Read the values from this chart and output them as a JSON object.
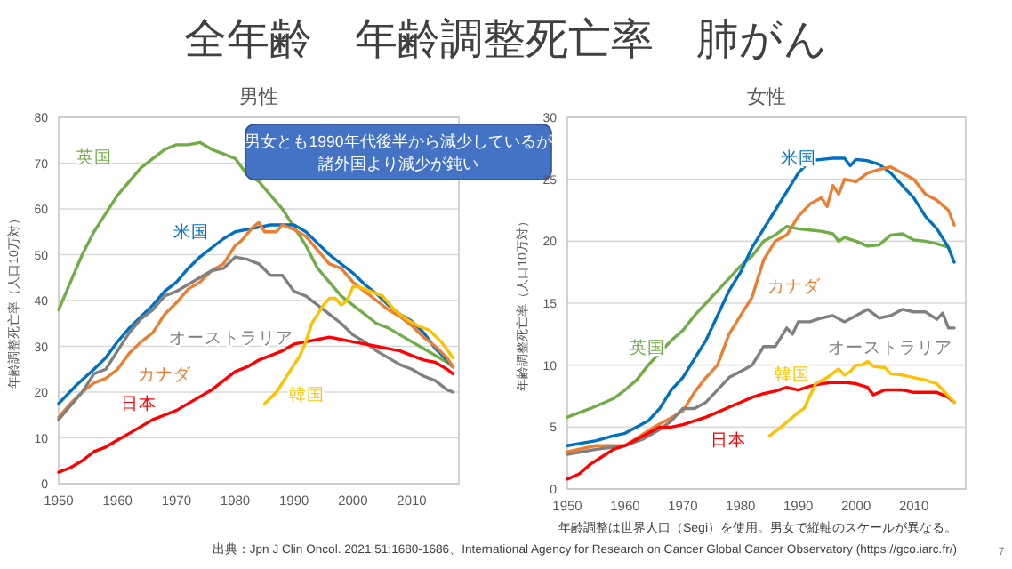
{
  "chart_data": [
    {
      "type": "line",
      "title": "全年齢　年齢調整死亡率　肺がん",
      "subtitle": "男性",
      "ylabel": "年齢調整死亡率（人口10万対）",
      "xlim": [
        1950,
        2018
      ],
      "xticks": [
        1950,
        1960,
        1970,
        1980,
        1990,
        2000,
        2010
      ],
      "ylim": [
        0,
        80
      ],
      "yticks": [
        0,
        10,
        20,
        30,
        40,
        50,
        60,
        70,
        80
      ],
      "grid": "y",
      "annotations": [
        "男女とも1990年代後半から減少しているが",
        "諸外国より減少が鈍い"
      ],
      "series": [
        {
          "name": "英国",
          "color": "#70ad47",
          "x": [
            1950,
            1952,
            1954,
            1956,
            1958,
            1960,
            1962,
            1964,
            1966,
            1968,
            1970,
            1972,
            1974,
            1976,
            1978,
            1980,
            1982,
            1984,
            1986,
            1988,
            1990,
            1992,
            1994,
            1996,
            1998,
            2000,
            2002,
            2004,
            2006,
            2008,
            2010,
            2012,
            2014,
            2016,
            2017
          ],
          "values": [
            38,
            44,
            50,
            55,
            59,
            63,
            66,
            69,
            71,
            73,
            74,
            74,
            74.5,
            73,
            72,
            71,
            67.5,
            66,
            63,
            60,
            56,
            52,
            47,
            44,
            41,
            39,
            37,
            35,
            34,
            32.5,
            31,
            29.5,
            28,
            26.5,
            25.5
          ]
        },
        {
          "name": "米国",
          "color": "#0070c0",
          "x": [
            1950,
            1953,
            1956,
            1958,
            1960,
            1962,
            1964,
            1966,
            1968,
            1970,
            1972,
            1974,
            1976,
            1978,
            1980,
            1982,
            1984,
            1986,
            1988,
            1990,
            1992,
            1994,
            1996,
            1998,
            2000,
            2002,
            2004,
            2006,
            2008,
            2010,
            2012,
            2014,
            2016,
            2017
          ],
          "values": [
            17.5,
            21.5,
            25,
            27.5,
            31,
            34,
            36.5,
            39,
            42,
            44,
            47,
            49.5,
            51.5,
            53.5,
            55,
            55.5,
            56,
            56.5,
            56.5,
            56.5,
            55,
            52.5,
            50,
            48,
            46,
            43.5,
            41.5,
            39,
            37,
            35.5,
            33,
            29.5,
            27,
            25.5
          ]
        },
        {
          "name": "カナダ",
          "color": "#ed7d31",
          "x": [
            1950,
            1952,
            1954,
            1956,
            1958,
            1960,
            1962,
            1964,
            1966,
            1968,
            1970,
            1972,
            1974,
            1976,
            1978,
            1980,
            1981,
            1983,
            1984,
            1985,
            1987,
            1988,
            1990,
            1992,
            1994,
            1996,
            1998,
            2000,
            2002,
            2004,
            2006,
            2008,
            2010,
            2012,
            2014,
            2016,
            2017
          ],
          "values": [
            14.5,
            17.5,
            20,
            22,
            23,
            25,
            28.5,
            31,
            33,
            37,
            39.5,
            42.5,
            44,
            46.5,
            48,
            52,
            53,
            56,
            57,
            55,
            55,
            56.5,
            55.5,
            54,
            51,
            48,
            47,
            44,
            42,
            40,
            38,
            36.5,
            34.5,
            32,
            30,
            27.5,
            25.5
          ]
        },
        {
          "name": "オーストラリア",
          "color": "#808080",
          "x": [
            1950,
            1952,
            1954,
            1956,
            1958,
            1960,
            1962,
            1964,
            1966,
            1968,
            1970,
            1972,
            1974,
            1976,
            1978,
            1980,
            1982,
            1984,
            1986,
            1988,
            1990,
            1992,
            1994,
            1996,
            1998,
            2000,
            2002,
            2004,
            2006,
            2008,
            2010,
            2012,
            2014,
            2016,
            2017
          ],
          "values": [
            14,
            17,
            20,
            24,
            25,
            29,
            33,
            36,
            38,
            41,
            42,
            43.5,
            45,
            46.5,
            47,
            49.5,
            49,
            48,
            45.5,
            45.5,
            42,
            41,
            39,
            37,
            35,
            32.5,
            31,
            29,
            27.5,
            26,
            25,
            23.5,
            22.5,
            20.5,
            20
          ]
        },
        {
          "name": "日本",
          "color": "#ff0000",
          "x": [
            1950,
            1952,
            1954,
            1956,
            1958,
            1960,
            1962,
            1964,
            1966,
            1968,
            1970,
            1972,
            1974,
            1976,
            1978,
            1980,
            1982,
            1984,
            1986,
            1988,
            1990,
            1992,
            1994,
            1996,
            1998,
            2000,
            2002,
            2004,
            2006,
            2008,
            2010,
            2012,
            2014,
            2016,
            2017
          ],
          "values": [
            2.5,
            3.5,
            5,
            7,
            8,
            9.5,
            11,
            12.5,
            14,
            15,
            16,
            17.5,
            19,
            20.5,
            22.5,
            24.5,
            25.5,
            27,
            28,
            29,
            30.5,
            31,
            31.5,
            32,
            31.5,
            31,
            30.5,
            30,
            29.5,
            29,
            28,
            27,
            26.5,
            25,
            24
          ]
        },
        {
          "name": "韓国",
          "color": "#ffc000",
          "x": [
            1985,
            1987,
            1989,
            1991,
            1992,
            1993,
            1995,
            1996,
            1997,
            1998,
            1999,
            2000,
            2001,
            2003,
            2005,
            2007,
            2009,
            2011,
            2013,
            2015,
            2017
          ],
          "values": [
            17.5,
            20,
            24,
            28,
            31,
            35,
            39,
            40.5,
            40.5,
            39,
            40,
            43,
            43,
            42,
            41,
            38,
            36,
            34.5,
            33.5,
            31,
            27.5
          ]
        }
      ]
    },
    {
      "type": "line",
      "subtitle": "女性",
      "ylabel": "年齢調整死亡率（人口10万対）",
      "xlim": [
        1950,
        2019
      ],
      "xticks": [
        1950,
        1960,
        1970,
        1980,
        1990,
        2000,
        2010
      ],
      "ylim": [
        0,
        30
      ],
      "yticks": [
        0,
        5,
        10,
        15,
        20,
        25,
        30
      ],
      "grid": "y",
      "annotations": [
        "年齢調整は世界人口（Segi）を使用。男女で縦軸のスケールが異なる。",
        "出典：Jpn J Clin Oncol. 2021;51:1680-1686、International Agency for Research on Cancer Global Cancer Observatory (https://gco.iarc.fr/)",
        "7"
      ],
      "series": [
        {
          "name": "英国",
          "color": "#70ad47",
          "x": [
            1950,
            1954,
            1958,
            1960,
            1962,
            1964,
            1966,
            1968,
            1970,
            1972,
            1974,
            1976,
            1978,
            1980,
            1982,
            1984,
            1986,
            1988,
            1990,
            1992,
            1994,
            1996,
            1997,
            1998,
            2000,
            2002,
            2004,
            2006,
            2008,
            2010,
            2012,
            2014,
            2016
          ],
          "values": [
            5.8,
            6.5,
            7.3,
            8,
            8.8,
            10,
            11,
            12,
            12.8,
            14,
            15,
            16,
            17,
            18,
            18.8,
            20,
            20.5,
            21.2,
            21,
            20.9,
            20.8,
            20.6,
            20,
            20.3,
            20,
            19.6,
            19.7,
            20.5,
            20.6,
            20.1,
            20,
            19.8,
            19.5
          ]
        },
        {
          "name": "米国",
          "color": "#0070c0",
          "x": [
            1950,
            1955,
            1958,
            1960,
            1962,
            1964,
            1966,
            1968,
            1970,
            1972,
            1974,
            1976,
            1978,
            1980,
            1982,
            1984,
            1986,
            1988,
            1990,
            1992,
            1994,
            1996,
            1998,
            1999,
            2000,
            2002,
            2004,
            2006,
            2008,
            2010,
            2012,
            2014,
            2016,
            2017
          ],
          "values": [
            3.5,
            3.9,
            4.3,
            4.5,
            5,
            5.5,
            6.5,
            8,
            9,
            10.5,
            12,
            14,
            16,
            17.5,
            19.5,
            21,
            22.5,
            24,
            25.5,
            26.5,
            26.6,
            26.7,
            26.7,
            26.1,
            26.6,
            26.5,
            26.2,
            25.5,
            24.5,
            23.5,
            22,
            21,
            19.5,
            18.3
          ]
        },
        {
          "name": "カナダ",
          "color": "#ed7d31",
          "x": [
            1950,
            1955,
            1960,
            1965,
            1967,
            1970,
            1972,
            1974,
            1976,
            1978,
            1980,
            1982,
            1984,
            1986,
            1988,
            1990,
            1992,
            1994,
            1995,
            1996,
            1997,
            1998,
            2000,
            2002,
            2004,
            2006,
            2008,
            2010,
            2012,
            2014,
            2016,
            2017
          ],
          "values": [
            3,
            3.5,
            3.5,
            5,
            5.5,
            6.3,
            7.8,
            9,
            10,
            12.5,
            14,
            15.5,
            18.5,
            20,
            20.5,
            22,
            23,
            23.5,
            22.8,
            24.5,
            23.8,
            25,
            24.8,
            25.5,
            25.8,
            26,
            25.5,
            25,
            23.8,
            23.3,
            22.5,
            21.3
          ]
        },
        {
          "name": "オーストラリア",
          "color": "#808080",
          "x": [
            1950,
            1955,
            1960,
            1963,
            1966,
            1968,
            1970,
            1972,
            1974,
            1976,
            1978,
            1980,
            1982,
            1984,
            1986,
            1988,
            1989,
            1990,
            1992,
            1994,
            1996,
            1998,
            2000,
            2002,
            2004,
            2006,
            2008,
            2010,
            2012,
            2014,
            2015,
            2016,
            2017
          ],
          "values": [
            2.8,
            3.2,
            3.5,
            4,
            4.8,
            5.5,
            6.5,
            6.5,
            7,
            8,
            9,
            9.5,
            10,
            11.5,
            11.5,
            13,
            12.5,
            13.5,
            13.5,
            13.8,
            14,
            13.5,
            14,
            14.5,
            13.8,
            14,
            14.5,
            14.3,
            14.3,
            13.7,
            14.2,
            13,
            13
          ]
        },
        {
          "name": "日本",
          "color": "#ff0000",
          "x": [
            1950,
            1952,
            1954,
            1956,
            1958,
            1960,
            1962,
            1964,
            1966,
            1968,
            1970,
            1972,
            1974,
            1976,
            1978,
            1980,
            1982,
            1984,
            1986,
            1988,
            1990,
            1992,
            1994,
            1996,
            1998,
            2000,
            2002,
            2003,
            2005,
            2008,
            2010,
            2014,
            2016,
            2017
          ],
          "values": [
            0.8,
            1.2,
            2,
            2.6,
            3.2,
            3.5,
            4,
            4.5,
            5,
            5,
            5.2,
            5.5,
            5.8,
            6.2,
            6.6,
            7,
            7.4,
            7.7,
            7.9,
            8.2,
            8,
            8.3,
            8.5,
            8.6,
            8.6,
            8.5,
            8.2,
            7.6,
            8,
            8,
            7.8,
            7.8,
            7.4,
            7
          ]
        },
        {
          "name": "韓国",
          "color": "#ffc000",
          "x": [
            1985,
            1987,
            1989,
            1990,
            1991,
            1992,
            1993,
            1995,
            1997,
            1998,
            1999,
            2000,
            2001,
            2002,
            2003,
            2005,
            2006,
            2008,
            2010,
            2012,
            2014,
            2016,
            2017
          ],
          "values": [
            4.3,
            5,
            5.8,
            6.2,
            6.5,
            7.5,
            8.5,
            9,
            9.7,
            9.2,
            9.5,
            10,
            10,
            10.3,
            9.9,
            9.8,
            9.3,
            9.2,
            9,
            8.8,
            8.5,
            7.5,
            7
          ]
        }
      ]
    }
  ]
}
